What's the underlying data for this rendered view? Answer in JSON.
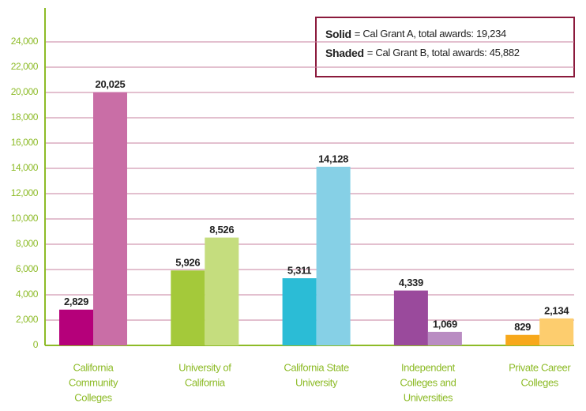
{
  "chart_data": {
    "type": "bar",
    "categories": [
      [
        "California",
        "Community",
        "Colleges"
      ],
      [
        "University of",
        "California"
      ],
      [
        "California State",
        "University"
      ],
      [
        "Independent",
        "Colleges and",
        "Universities"
      ],
      [
        "Private Career",
        "Colleges"
      ]
    ],
    "series": [
      {
        "key": "Solid",
        "name": "= Cal Grant A, total awards: 19,234",
        "colors": [
          "#b5007a",
          "#a4c93a",
          "#2bbcd6",
          "#9a4a9c",
          "#f7a81b"
        ],
        "values": [
          2829,
          5926,
          5311,
          4339,
          829
        ],
        "value_labels": [
          "2,829",
          "5,926",
          "5,311",
          "4,339",
          "829"
        ]
      },
      {
        "key": "Shaded",
        "name": "= Cal Grant B, total awards: 45,882",
        "colors": [
          "#c96ea6",
          "#c5dd7e",
          "#86d0e6",
          "#b98cc2",
          "#fdcd6e"
        ],
        "values": [
          20025,
          8526,
          14128,
          1069,
          2134
        ],
        "value_labels": [
          "20,025",
          "8,526",
          "14,128",
          "1,069",
          "2,134"
        ]
      }
    ],
    "ylim": [
      0,
      26000
    ],
    "yticks": [
      0,
      {
        "value": 2000,
        "label": "2,000"
      },
      {
        "value": 4000,
        "label": "4,000"
      },
      {
        "value": 6000,
        "label": "6,000"
      },
      {
        "value": 8000,
        "label": "8,000"
      },
      {
        "value": 10000,
        "label": "10,000"
      },
      {
        "value": 12000,
        "label": "12,000"
      },
      {
        "value": 14000,
        "label": "14,000"
      },
      {
        "value": 16000,
        "label": "16,000"
      },
      {
        "value": 18000,
        "label": "18,000"
      },
      {
        "value": 20000,
        "label": "20,000"
      },
      {
        "value": 22000,
        "label": "22,000"
      },
      {
        "value": 24000,
        "label": "24,000"
      }
    ],
    "grid": true
  }
}
